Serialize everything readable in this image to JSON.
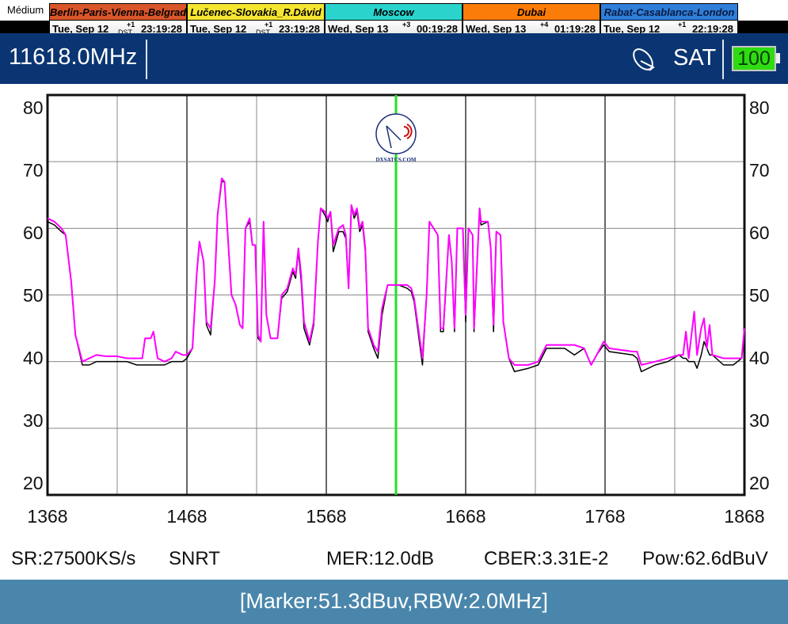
{
  "mode_label": "Médium",
  "clocks": [
    {
      "city": "Berlin-Paris-Vienna-Belgrade",
      "date": "Tue, Sep 12",
      "offset": "+1",
      "dst": "DST",
      "time": "23:19:28",
      "color": "#d9552a",
      "text_color": "#000000"
    },
    {
      "city": "Lučenec-Slovakia_R.Dávid",
      "date": "Tue, Sep 12",
      "offset": "+1",
      "dst": "DST",
      "time": "23:19:28",
      "color": "#f5e531",
      "text_color": "#000000"
    },
    {
      "city": "Moscow",
      "date": "Wed, Sep 13",
      "offset": "+3",
      "dst": "",
      "time": "00:19:28",
      "color": "#2ad4cc",
      "text_color": "#000000"
    },
    {
      "city": "Dubai",
      "date": "Wed, Sep 13",
      "offset": "+4",
      "dst": "",
      "time": "01:19:28",
      "color": "#fb7c08",
      "text_color": "#000000"
    },
    {
      "city": "Rabat-Casablanca-London",
      "date": "Tue, Sep 12",
      "offset": "+1",
      "dst": "",
      "time": "22:19:28",
      "color": "#2f7ed8",
      "text_color": "#0a1a40"
    }
  ],
  "header": {
    "frequency": "11618.0MHz",
    "mode": "SAT",
    "battery": "100",
    "icons": [
      "satellite-dish-icon",
      "battery-icon"
    ]
  },
  "logo_text": "DXSATCS.COM",
  "stats": {
    "sr": "SR:27500KS/s",
    "mode": "SNRT",
    "mer": "MER:12.0dB",
    "cber": "CBER:3.31E-2",
    "pow": "Pow:62.6dBuV"
  },
  "footer": {
    "marker": "[Marker:51.3dBuv,RBW:2.0MHz]"
  },
  "chart_data": {
    "type": "line",
    "xlim": [
      1368,
      1868
    ],
    "ylim": [
      20,
      80
    ],
    "xticks": [
      "1368",
      "1468",
      "1568",
      "1668",
      "1768",
      "1868"
    ],
    "yticks": [
      "80",
      "70",
      "60",
      "50",
      "40",
      "30",
      "20"
    ],
    "grid": true,
    "marker_x": 1618,
    "colors": {
      "trace": "#ff00ff",
      "hold": "#000000",
      "marker": "#22e022"
    },
    "x": [
      1368,
      1373,
      1378,
      1381,
      1385,
      1388,
      1393,
      1398,
      1403,
      1410,
      1418,
      1425,
      1432,
      1436,
      1438,
      1442,
      1444,
      1447,
      1452,
      1457,
      1460,
      1465,
      1468,
      1472,
      1475,
      1477,
      1480,
      1482,
      1485,
      1488,
      1490,
      1493,
      1495,
      1497,
      1500,
      1503,
      1506,
      1508,
      1510,
      1513,
      1515,
      1517,
      1519,
      1521,
      1523,
      1525,
      1528,
      1533,
      1536,
      1540,
      1544,
      1546,
      1548,
      1550,
      1552,
      1556,
      1559,
      1562,
      1564,
      1567,
      1569,
      1571,
      1573,
      1577,
      1580,
      1582,
      1584,
      1586,
      1588,
      1590,
      1592,
      1594,
      1596,
      1598,
      1602,
      1605,
      1608,
      1612,
      1620,
      1626,
      1629,
      1631,
      1637,
      1640,
      1642,
      1648,
      1650,
      1652,
      1656,
      1658,
      1660,
      1662,
      1666,
      1668,
      1670,
      1673,
      1674,
      1678,
      1679,
      1684,
      1686,
      1688,
      1690,
      1693,
      1695,
      1699,
      1703,
      1713,
      1720,
      1726,
      1739,
      1746,
      1753,
      1758,
      1762,
      1767,
      1771,
      1788,
      1791,
      1794,
      1804,
      1813,
      1821,
      1824,
      1826,
      1828,
      1832,
      1834,
      1837,
      1839,
      1841,
      1843,
      1845,
      1853,
      1860,
      1866,
      1868
    ],
    "series": [
      {
        "values": [
          61.5,
          61,
          60,
          59,
          52,
          44,
          40,
          40.5,
          41,
          40.8,
          40.8,
          40.5,
          40.5,
          40.5,
          43.5,
          43.5,
          44.5,
          40.5,
          40,
          40.5,
          41.5,
          41,
          41,
          42,
          53,
          58,
          55,
          46,
          45,
          52,
          62,
          67.5,
          67,
          60,
          50,
          48.5,
          45.5,
          45,
          60,
          61.5,
          57.5,
          57.5,
          44,
          43,
          61,
          47,
          43.5,
          43.5,
          50,
          51,
          54,
          53,
          57,
          53,
          46,
          43,
          46,
          58,
          63,
          62.5,
          61.5,
          62.5,
          57.5,
          60,
          60.5,
          59,
          51,
          63.5,
          62,
          63,
          60,
          61,
          57,
          45,
          42.5,
          41.5,
          48,
          51.5,
          51.5,
          51.5,
          51,
          49.5,
          40.5,
          50,
          61,
          59,
          45,
          45,
          59,
          55,
          45,
          60,
          60,
          47,
          60,
          59,
          45,
          63,
          61,
          61,
          57,
          45.5,
          59.5,
          59,
          46,
          40.5,
          39.5,
          39.5,
          40,
          42.5,
          42.5,
          42.5,
          42,
          39.5,
          41,
          43,
          42,
          41.5,
          41.5,
          39.5,
          40,
          40.5,
          41,
          41,
          44.5,
          40.5,
          47.5,
          41,
          45,
          46.5,
          42,
          45.5,
          41,
          40.5,
          40.5,
          40.5,
          45
        ]
      },
      {
        "values": [
          61,
          60.5,
          59.5,
          59,
          52,
          44,
          39.5,
          39.5,
          40,
          40,
          40,
          40,
          39.5,
          39.5,
          39.5,
          39.5,
          39.5,
          39.5,
          39.5,
          40,
          40,
          40,
          40.5,
          42,
          53,
          58,
          55,
          45.5,
          44,
          52,
          62,
          67,
          67,
          60,
          50,
          48.5,
          45.5,
          45,
          60,
          61,
          57.5,
          57.5,
          43.5,
          43,
          61,
          47,
          43.5,
          43.5,
          49.5,
          50.5,
          53.5,
          52.5,
          56.5,
          52,
          45,
          42.5,
          45.5,
          58,
          63,
          62,
          61,
          62.5,
          56.5,
          59.5,
          59.5,
          58.5,
          51,
          63.5,
          61.5,
          62.5,
          59.5,
          60.5,
          56.5,
          44.5,
          42,
          40.5,
          47,
          51.5,
          51.5,
          51,
          50.5,
          49,
          39.5,
          50,
          61,
          59,
          44.5,
          44.5,
          59,
          55,
          44.5,
          60,
          60,
          46,
          60,
          59,
          44.5,
          63,
          60.5,
          61,
          57,
          44.5,
          59.5,
          59,
          46,
          40.5,
          38.5,
          39,
          39.5,
          42,
          42,
          41,
          42,
          39.5,
          41,
          42.5,
          41.5,
          41,
          40.5,
          38.5,
          39.5,
          40,
          41,
          40.5,
          40.5,
          40,
          40,
          39,
          41,
          43,
          42,
          41,
          41,
          39.5,
          39.5,
          40.5,
          45
        ]
      }
    ]
  }
}
